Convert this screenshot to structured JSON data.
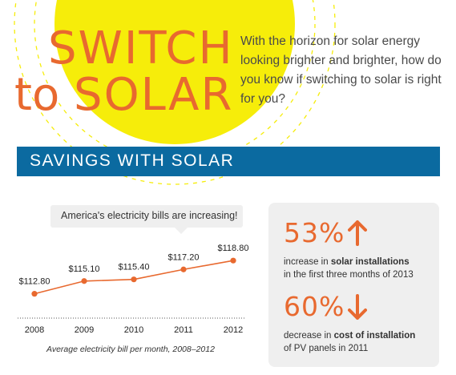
{
  "colors": {
    "accent": "#e8692f",
    "sun": "#f6ed0a",
    "banner": "#0b6aa0",
    "panel": "#efefef"
  },
  "header": {
    "title_line1": "SWITCH",
    "title_to": "to",
    "title_solar": "SOLAR",
    "intro": "With the horizon for solar energy looking brighter and brighter, how do you know if switching to solar is right for you?"
  },
  "banner": {
    "text": "SAVINGS WITH SOLAR"
  },
  "callout": {
    "text": "America's electricity bills are increasing!"
  },
  "chart_data": {
    "type": "line",
    "x": [
      "2008",
      "2009",
      "2010",
      "2011",
      "2012"
    ],
    "values": [
      112.8,
      115.1,
      115.4,
      117.2,
      118.8
    ],
    "data_labels": [
      "$112.80",
      "$115.10",
      "$115.40",
      "$117.20",
      "$118.80"
    ],
    "caption": "Average electricity bill per month, 2008–2012",
    "ylim": [
      110,
      121
    ],
    "grid": false,
    "color": "#e8692f"
  },
  "stats": [
    {
      "value": "53%",
      "direction": "up",
      "arrow_icon": "arrow-up-icon",
      "desc_plain": "increase in ",
      "desc_bold": "solar installations",
      "desc_rest": "in the first three months of 2013"
    },
    {
      "value": "60%",
      "direction": "down",
      "arrow_icon": "arrow-down-icon",
      "desc_plain": "decrease in ",
      "desc_bold": "cost of installation",
      "desc_rest": "of PV panels in 2011"
    }
  ]
}
